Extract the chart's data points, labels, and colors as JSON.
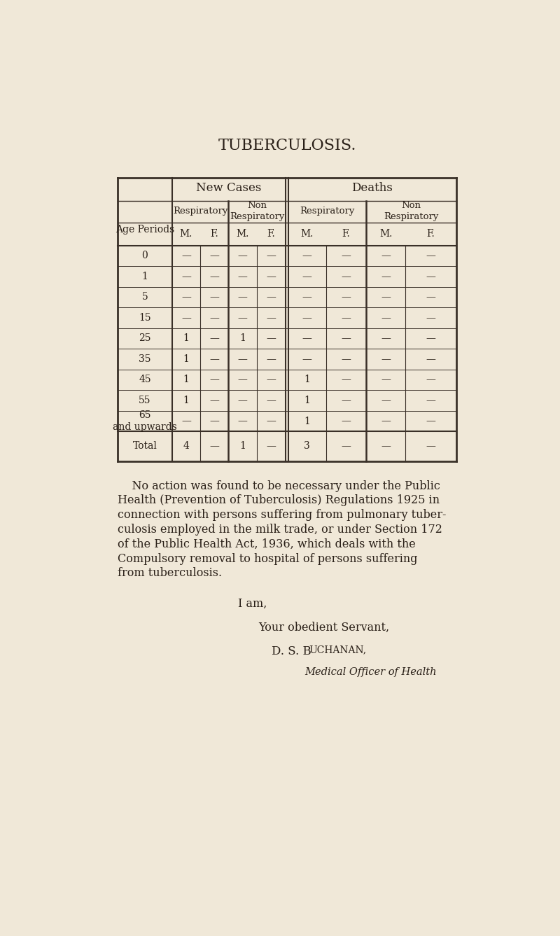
{
  "title": "TUBERCULOSIS.",
  "bg_color": "#f0e8d8",
  "title_fontsize": 16,
  "table_header1_left": "New Cases",
  "table_header1_right": "Deaths",
  "age_periods": [
    "0",
    "1",
    "5",
    "15",
    "25",
    "35",
    "45",
    "55",
    "65\nand upwards",
    "Total"
  ],
  "data": [
    [
      "—",
      "—",
      "—",
      "—",
      "—",
      "—",
      "—",
      "—"
    ],
    [
      "—",
      "—",
      "—",
      "—",
      "—",
      "—",
      "—",
      "—"
    ],
    [
      "—",
      "—",
      "—",
      "—",
      "—",
      "—",
      "—",
      "—"
    ],
    [
      "—",
      "—",
      "—",
      "—",
      "—",
      "—",
      "—",
      "—"
    ],
    [
      "1",
      "—",
      "1",
      "—",
      "—",
      "—",
      "—",
      "—"
    ],
    [
      "1",
      "—",
      "—",
      "—",
      "—",
      "—",
      "—",
      "—"
    ],
    [
      "1",
      "—",
      "—",
      "—",
      "1",
      "—",
      "—",
      "—"
    ],
    [
      "1",
      "—",
      "—",
      "—",
      "1",
      "—",
      "—",
      "—"
    ],
    [
      "—",
      "—",
      "—",
      "—",
      "1",
      "—",
      "—",
      "—"
    ],
    [
      "4",
      "—",
      "1",
      "—",
      "3",
      "—",
      "—",
      "—"
    ]
  ],
  "para_lines": [
    "    No action was found to be necessary under the Public",
    "Health (Prevention of Tuberculosis) Regulations 1925 in",
    "connection with persons suffering from pulmonary tuber-",
    "culosis employed in the milk trade, or under Section 172",
    "of the Public Health Act, 1936, which deals with the",
    "Compulsory removal to hospital of persons suffering",
    "from tuberculosis."
  ],
  "closing1": "I am,",
  "closing2": "Your obedient Servant,",
  "closing3": "D. S. Buchanan,",
  "closing4": "Medical Officer of Health",
  "text_color": "#2a2018",
  "line_color": "#3a3028"
}
